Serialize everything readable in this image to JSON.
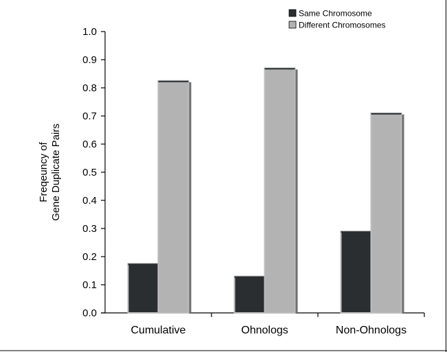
{
  "chart_data": {
    "type": "bar",
    "categories": [
      "Cumulative",
      "Ohnologs",
      "Non-Ohnologs"
    ],
    "series": [
      {
        "name": "Same Chromosome",
        "values": [
          0.175,
          0.13,
          0.29
        ],
        "color": "#2b2e30"
      },
      {
        "name": "Different Chromosomes",
        "values": [
          0.825,
          0.87,
          0.71
        ],
        "color": "#b3b3b3"
      }
    ],
    "ylabel": [
      "Freqeuncy of",
      "Gene Duplicate Pairs"
    ],
    "xlabel": "",
    "ylim": [
      0.0,
      1.0
    ],
    "yticks": [
      "0.0",
      "0.1",
      "0.2",
      "0.3",
      "0.4",
      "0.5",
      "0.6",
      "0.7",
      "0.8",
      "0.9",
      "1.0"
    ],
    "legend_position": "top-right",
    "grid": false
  }
}
